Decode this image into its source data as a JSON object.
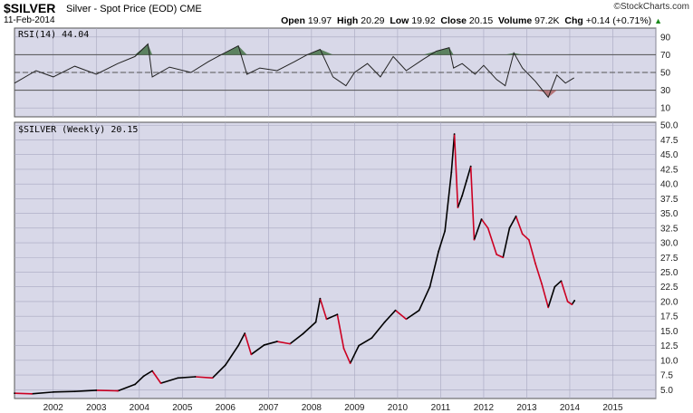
{
  "header": {
    "symbol": "$SILVER",
    "subtitle": "Silver - Spot Price (EOD)",
    "exchange": "CME",
    "date": "11-Feb-2014",
    "brand": "©StockCharts.com",
    "open_label": "Open",
    "open": "19.97",
    "high_label": "High",
    "high": "20.29",
    "low_label": "Low",
    "low": "19.92",
    "close_label": "Close",
    "close": "20.15",
    "volume_label": "Volume",
    "volume": "97.2K",
    "chg_label": "Chg",
    "chg": "+0.14 (+0.71%)"
  },
  "colors": {
    "panel_bg": "#d8d8e8",
    "up": "#000000",
    "down": "#cc0022",
    "grid": "#a8a8c0",
    "rsi_over": "#336633",
    "rsi_under": "#aa5555"
  },
  "chart_data": [
    {
      "type": "line",
      "title": "RSI(14) 44.04",
      "yticks": [
        "90",
        "70",
        "50",
        "30",
        "10"
      ],
      "ylim": [
        0,
        100
      ],
      "levels": [
        70,
        50,
        30
      ],
      "x": [
        2001.1,
        2001.6,
        2002.0,
        2002.5,
        2003.0,
        2003.5,
        2003.9,
        2004.2,
        2004.3,
        2004.7,
        2005.2,
        2005.6,
        2005.9,
        2006.3,
        2006.5,
        2006.8,
        2007.2,
        2007.6,
        2007.9,
        2008.2,
        2008.5,
        2008.8,
        2009.0,
        2009.3,
        2009.6,
        2009.9,
        2010.2,
        2010.6,
        2010.9,
        2011.2,
        2011.3,
        2011.5,
        2011.8,
        2012.0,
        2012.3,
        2012.5,
        2012.7,
        2012.9,
        2013.2,
        2013.4,
        2013.5,
        2013.7,
        2013.9,
        2014.1
      ],
      "values": [
        38,
        52,
        45,
        57,
        48,
        60,
        68,
        82,
        45,
        56,
        50,
        62,
        70,
        80,
        48,
        55,
        52,
        62,
        70,
        76,
        45,
        35,
        50,
        60,
        45,
        68,
        52,
        65,
        74,
        78,
        55,
        60,
        48,
        58,
        42,
        35,
        72,
        55,
        40,
        28,
        22,
        47,
        38,
        44
      ]
    },
    {
      "type": "line",
      "title": "$SILVER (Weekly) 20.15",
      "xlabel": "",
      "ylabel": "",
      "xticks": [
        "2002",
        "2003",
        "2004",
        "2005",
        "2006",
        "2007",
        "2008",
        "2009",
        "2010",
        "2011",
        "2012",
        "2013",
        "2014",
        "2015"
      ],
      "yticks": [
        "50.0",
        "47.5",
        "45.0",
        "42.5",
        "40.0",
        "37.5",
        "35.0",
        "32.5",
        "30.0",
        "27.5",
        "25.0",
        "22.5",
        "20.0",
        "17.5",
        "15.0",
        "12.5",
        "10.0",
        "7.5",
        "5.0"
      ],
      "ylim": [
        3.5,
        50.5
      ],
      "xlim": [
        2001.1,
        2016.0
      ],
      "x": [
        2001.1,
        2001.5,
        2002.0,
        2002.5,
        2003.0,
        2003.5,
        2003.9,
        2004.1,
        2004.3,
        2004.5,
        2004.9,
        2005.3,
        2005.7,
        2006.0,
        2006.3,
        2006.45,
        2006.6,
        2006.9,
        2007.2,
        2007.5,
        2007.8,
        2008.1,
        2008.2,
        2008.35,
        2008.6,
        2008.75,
        2008.9,
        2009.1,
        2009.4,
        2009.7,
        2009.95,
        2010.2,
        2010.5,
        2010.75,
        2010.95,
        2011.1,
        2011.25,
        2011.32,
        2011.4,
        2011.5,
        2011.6,
        2011.7,
        2011.78,
        2011.95,
        2012.1,
        2012.3,
        2012.45,
        2012.6,
        2012.75,
        2012.9,
        2013.05,
        2013.2,
        2013.35,
        2013.5,
        2013.65,
        2013.8,
        2013.95,
        2014.05,
        2014.11
      ],
      "values": [
        4.4,
        4.3,
        4.6,
        4.7,
        4.9,
        4.8,
        5.9,
        7.3,
        8.2,
        6.1,
        7.0,
        7.2,
        7.0,
        9.2,
        12.5,
        14.6,
        11.0,
        12.6,
        13.2,
        12.8,
        14.5,
        16.5,
        20.5,
        17.0,
        17.8,
        12.0,
        9.5,
        12.5,
        13.8,
        16.5,
        18.5,
        17.0,
        18.5,
        22.5,
        28.5,
        32.0,
        42.0,
        48.5,
        36.0,
        38.0,
        40.5,
        43.0,
        30.5,
        34.0,
        32.5,
        28.0,
        27.5,
        32.5,
        34.5,
        31.5,
        30.5,
        26.5,
        23.0,
        19.0,
        22.5,
        23.5,
        20.0,
        19.5,
        20.15
      ]
    }
  ]
}
